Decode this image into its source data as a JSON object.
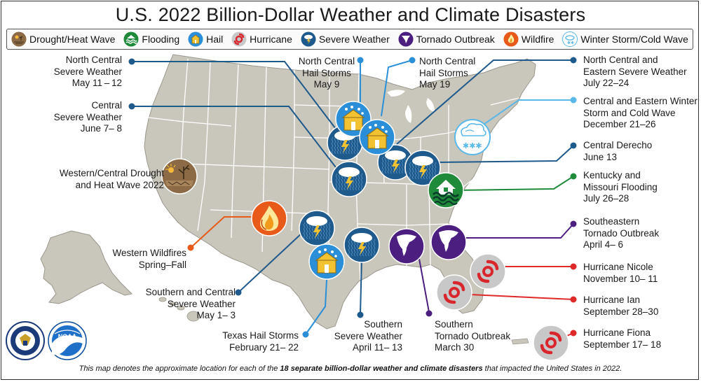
{
  "title": "U.S. 2022 Billion-Dollar Weather and Climate Disasters",
  "legend": [
    {
      "name": "drought",
      "label": "Drought/Heat Wave",
      "icon": "drought-icon",
      "color": "#8b6a45"
    },
    {
      "name": "flooding",
      "label": "Flooding",
      "icon": "flooding-icon",
      "color": "#1f8a3a"
    },
    {
      "name": "hail",
      "label": "Hail",
      "icon": "hail-icon",
      "color": "#2a8fd8"
    },
    {
      "name": "hurricane",
      "label": "Hurricane",
      "icon": "hurricane-icon",
      "color": "#c8c8c8"
    },
    {
      "name": "severe",
      "label": "Severe Weather",
      "icon": "severe-weather-icon",
      "color": "#1f5a8c"
    },
    {
      "name": "tornado",
      "label": "Tornado Outbreak",
      "icon": "tornado-icon",
      "color": "#4b1e80"
    },
    {
      "name": "wildfire",
      "label": "Wildfire",
      "icon": "wildfire-icon",
      "color": "#e85a1a"
    },
    {
      "name": "winter",
      "label": "Winter Storm/Cold Wave",
      "icon": "winter-storm-icon",
      "color": "#5bb8e8"
    }
  ],
  "events": {
    "nc_severe": {
      "lines": [
        "North Central",
        "Severe Weather",
        "May 11 – 12"
      ]
    },
    "central_severe": {
      "lines": [
        "Central",
        "Severe Weather",
        "June 7– 8"
      ]
    },
    "drought": {
      "lines": [
        "Western/Central Drought",
        "and Heat Wave 2022"
      ]
    },
    "wildfires": {
      "lines": [
        "Western Wildfires",
        "Spring–Fall"
      ]
    },
    "sc_severe": {
      "lines": [
        "Southern and Central",
        "Severe Weather",
        "May 1– 3"
      ]
    },
    "tx_hail": {
      "lines": [
        "Texas Hail Storms",
        "February 21– 22"
      ]
    },
    "s_severe": {
      "lines": [
        "Southern",
        "Severe Weather",
        "April 11– 13"
      ]
    },
    "s_tornado": {
      "lines": [
        "Southern",
        "Tornado Outbreak",
        "March 30"
      ]
    },
    "nc_hail_may9": {
      "lines": [
        "North Central",
        "Hail Storms",
        "May 9"
      ]
    },
    "nc_hail_may19": {
      "lines": [
        "North Central",
        "Hail Storms",
        "May 19"
      ]
    },
    "nce_severe": {
      "lines": [
        "North Central and",
        "Eastern Severe Weather",
        "July 22–24"
      ]
    },
    "winter_storm": {
      "lines": [
        "Central and Eastern Winter",
        "Storm and Cold Wave",
        "December 21–26"
      ]
    },
    "derecho": {
      "lines": [
        "Central Derecho",
        "June 13"
      ]
    },
    "flooding": {
      "lines": [
        "Kentucky and",
        "Missouri Flooding",
        "July 26–28"
      ]
    },
    "se_tornado": {
      "lines": [
        "Southeastern",
        "Tornado Outbreak",
        "April 4– 6"
      ]
    },
    "nicole": {
      "lines": [
        "Hurricane Nicole",
        "November 10– 11"
      ]
    },
    "ian": {
      "lines": [
        "Hurricane Ian",
        "September 28–30"
      ]
    },
    "fiona": {
      "lines": [
        "Hurricane Fiona",
        "September 17– 18"
      ]
    }
  },
  "footnote": {
    "prefix": "This map denotes the approximate location for each of the ",
    "bold": "18 separate billion-dollar weather and climate disasters",
    "suffix": " that impacted the United States in 2022."
  },
  "seals": [
    {
      "name": "department-of-commerce-seal"
    },
    {
      "name": "noaa-logo",
      "text": "NOAA"
    }
  ],
  "map_colors": {
    "land": "#c9c6bb",
    "state_border": "#ffffff",
    "outline": "#9a978e"
  }
}
